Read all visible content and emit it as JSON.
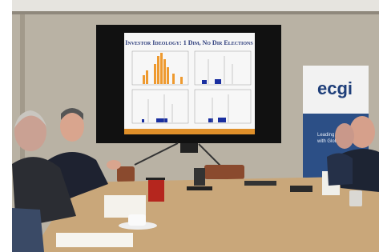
{
  "slide": {
    "title": "Investor Ideology: 1 Dim, No Dir Elections"
  },
  "banner": {
    "logo": "ecgi",
    "tagline_1": "Leading",
    "tagline_2": "with Glob"
  }
}
